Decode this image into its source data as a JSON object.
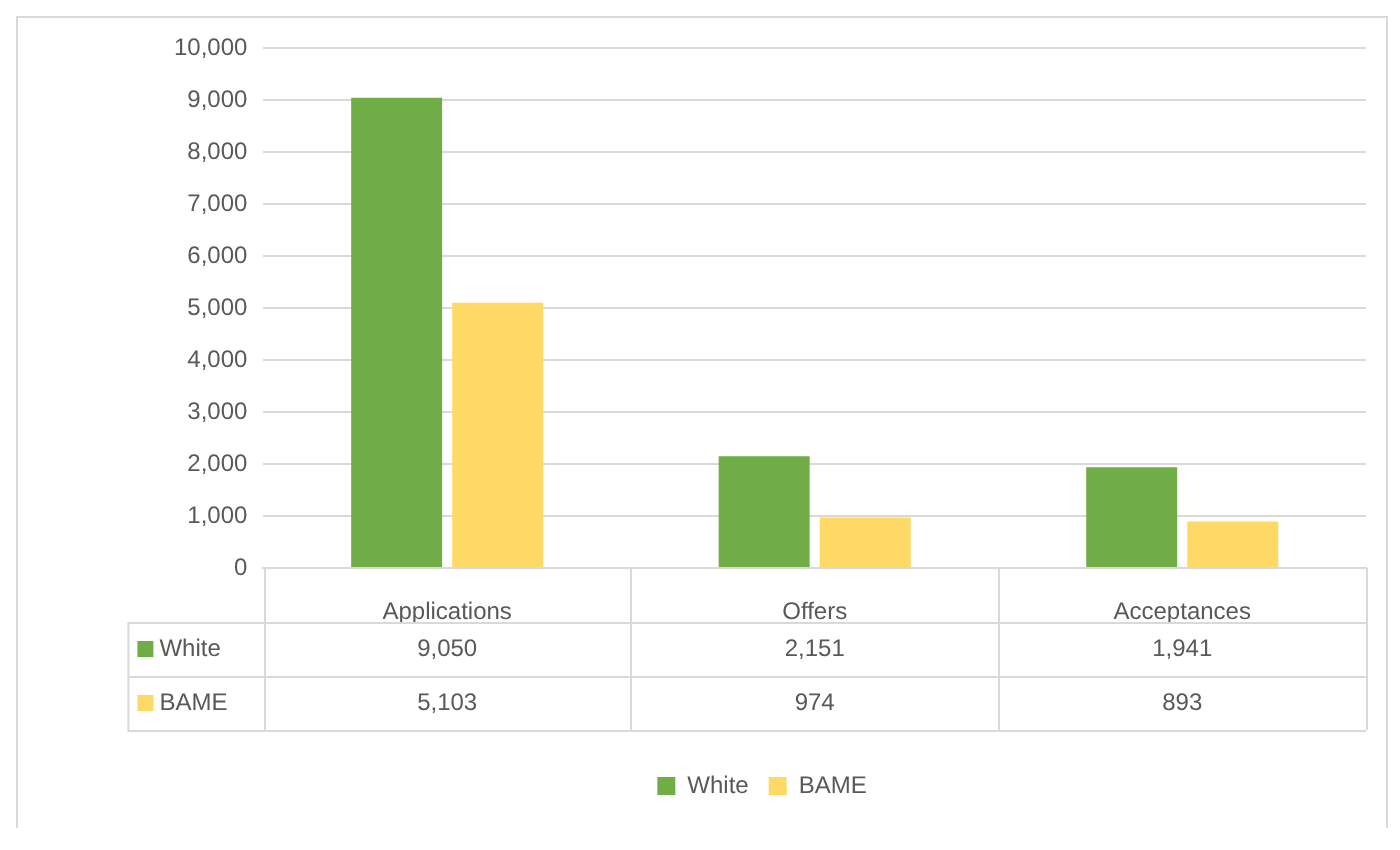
{
  "chart_data": {
    "type": "bar",
    "categories": [
      "Applications",
      "Offers",
      "Acceptances"
    ],
    "series": [
      {
        "name": "White",
        "color": "#70ad47",
        "values": [
          9050,
          2151,
          1941
        ],
        "value_labels": [
          "9,050",
          "2,151",
          "1,941"
        ]
      },
      {
        "name": "BAME",
        "color": "#ffd966",
        "values": [
          5103,
          974,
          893
        ],
        "value_labels": [
          "5,103",
          "974",
          "893"
        ]
      }
    ],
    "ylim": [
      0,
      10000
    ],
    "yticks": [
      0,
      {
        "value": 1000,
        "label": "1,000"
      },
      {
        "value": 2000,
        "label": "2,000"
      },
      {
        "value": 3000,
        "label": "3,000"
      },
      {
        "value": 4000,
        "label": "4,000"
      },
      {
        "value": 5000,
        "label": "5,000"
      },
      {
        "value": 6000,
        "label": "6,000"
      },
      {
        "value": 7000,
        "label": "7,000"
      },
      {
        "value": 8000,
        "label": "8,000"
      },
      {
        "value": 9000,
        "label": "9,000"
      },
      {
        "value": 10000,
        "label": "10,000"
      }
    ],
    "grid": "y",
    "legend": "bottom"
  }
}
